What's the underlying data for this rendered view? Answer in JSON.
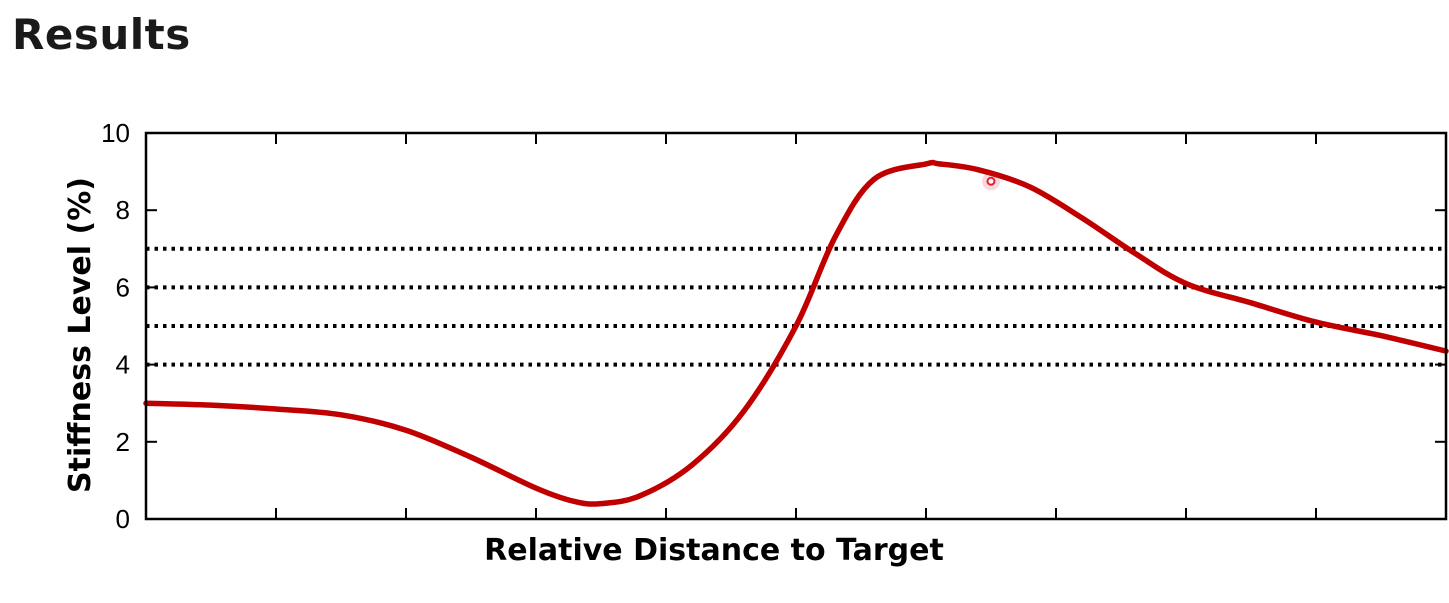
{
  "page": {
    "title": "Results"
  },
  "chart_data": {
    "type": "line",
    "title": "",
    "xlabel": "Relative Distance to Target",
    "ylabel": "Stiffness Level (%)",
    "xlim": [
      0,
      10
    ],
    "ylim": [
      0,
      10
    ],
    "y_ticks": [
      0,
      2,
      4,
      6,
      8,
      10
    ],
    "x_tick_count": 10,
    "x_tick_labels_shown": false,
    "grid": false,
    "colors": {
      "line": "#c00000",
      "reference_lines": "#000000",
      "marker": "#e02030"
    },
    "reference_lines": [
      {
        "y": 4,
        "style": "dotted"
      },
      {
        "y": 5,
        "style": "dotted"
      },
      {
        "y": 6,
        "style": "dotted"
      },
      {
        "y": 7,
        "style": "dotted"
      }
    ],
    "series": [
      {
        "x": [
          0.0,
          0.5,
          1.0,
          1.5,
          2.0,
          2.5,
          3.0,
          3.3,
          3.5,
          3.8,
          4.2,
          4.6,
          5.0,
          5.3,
          5.6,
          6.0,
          6.1,
          6.4,
          6.8,
          7.2,
          7.6,
          8.0,
          8.5,
          9.0,
          9.5,
          10.0
        ],
        "y": [
          3.0,
          2.95,
          2.85,
          2.7,
          2.3,
          1.6,
          0.8,
          0.45,
          0.4,
          0.6,
          1.4,
          2.8,
          5.0,
          7.3,
          8.8,
          9.2,
          9.2,
          9.05,
          8.6,
          7.8,
          6.9,
          6.1,
          5.6,
          5.1,
          4.75,
          4.35
        ]
      }
    ],
    "marker_point": {
      "x": 6.5,
      "y": 8.75
    }
  }
}
